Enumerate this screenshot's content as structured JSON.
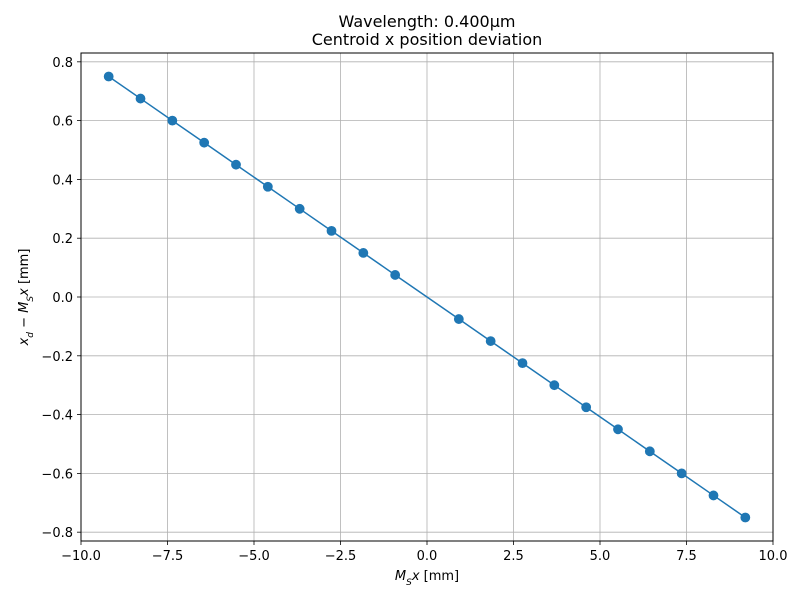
{
  "chart_data": {
    "type": "line",
    "title": "Wavelength: 0.400µm",
    "subtitle": "Centroid x position deviation",
    "xlabel": "M_S x [mm]",
    "ylabel": "x_d − M_S x [mm]",
    "xlim": [
      -10.0,
      10.0
    ],
    "ylim": [
      -0.83,
      0.83
    ],
    "xticks": [
      -10.0,
      -7.5,
      -5.0,
      -2.5,
      0.0,
      2.5,
      5.0,
      7.5,
      10.0
    ],
    "xtick_labels": [
      "−10.0",
      "−7.5",
      "−5.0",
      "−2.5",
      "0.0",
      "2.5",
      "5.0",
      "7.5",
      "10.0"
    ],
    "yticks": [
      -0.8,
      -0.6,
      -0.4,
      -0.2,
      0.0,
      0.2,
      0.4,
      0.6,
      0.8
    ],
    "ytick_labels": [
      "−0.8",
      "−0.6",
      "−0.4",
      "−0.2",
      "0.0",
      "0.2",
      "0.4",
      "0.6",
      "0.8"
    ],
    "grid": true,
    "legend": false,
    "series": [
      {
        "color": "#1f77b4",
        "marker": "circle",
        "x": [
          -9.2,
          -8.28,
          -7.36,
          -6.44,
          -5.52,
          -4.6,
          -3.68,
          -2.76,
          -1.84,
          -0.92,
          0.0,
          0.92,
          1.84,
          2.76,
          3.68,
          4.6,
          5.52,
          6.44,
          7.36,
          8.28,
          9.2
        ],
        "y": [
          0.75,
          0.675,
          0.6,
          0.525,
          0.45,
          0.375,
          0.3,
          0.225,
          0.15,
          0.075,
          0.0,
          -0.075,
          -0.15,
          -0.225,
          -0.3,
          -0.375,
          -0.45,
          -0.525,
          -0.6,
          -0.675,
          -0.75
        ],
        "marker_mask": [
          true,
          true,
          true,
          true,
          true,
          true,
          true,
          true,
          true,
          true,
          false,
          true,
          true,
          true,
          true,
          true,
          true,
          true,
          true,
          true,
          true
        ]
      }
    ]
  }
}
